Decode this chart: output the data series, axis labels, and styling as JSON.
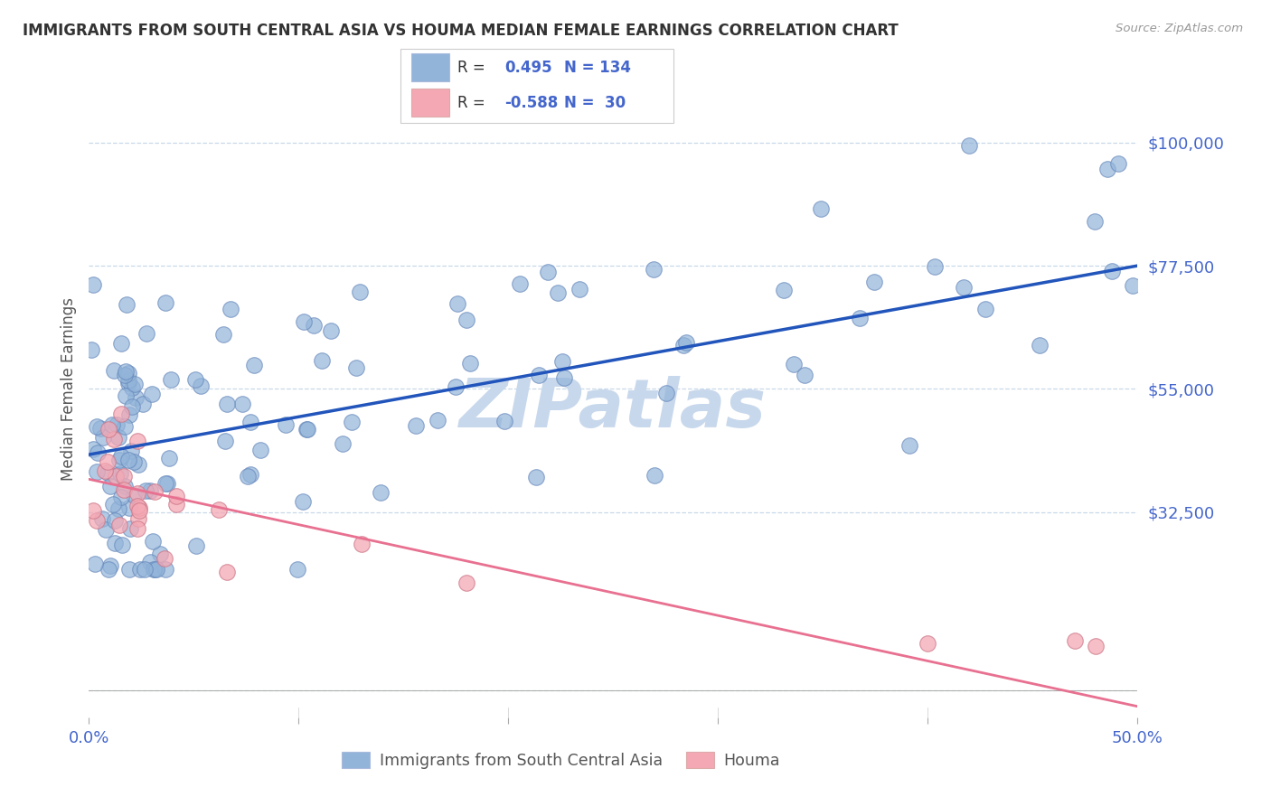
{
  "title": "IMMIGRANTS FROM SOUTH CENTRAL ASIA VS HOUMA MEDIAN FEMALE EARNINGS CORRELATION CHART",
  "source": "Source: ZipAtlas.com",
  "ylabel": "Median Female Earnings",
  "xlim": [
    0.0,
    0.5
  ],
  "ylim": [
    -5000,
    115000
  ],
  "yticks": [
    0,
    32500,
    55000,
    77500,
    100000
  ],
  "ytick_labels": [
    "",
    "$32,500",
    "$55,000",
    "$77,500",
    "$100,000"
  ],
  "xticks": [
    0.0,
    0.1,
    0.2,
    0.3,
    0.4,
    0.5
  ],
  "xtick_labels": [
    "0.0%",
    "",
    "",
    "",
    "",
    "50.0%"
  ],
  "blue_R": 0.495,
  "blue_N": 134,
  "pink_R": -0.588,
  "pink_N": 30,
  "blue_color": "#92B4D9",
  "pink_color": "#F4A8B4",
  "blue_line_color": "#2255BB",
  "pink_line_color": "#E87090",
  "blue_label": "Immigrants from South Central Asia",
  "pink_label": "Houma",
  "title_color": "#333333",
  "axis_label_color": "#4466CC",
  "watermark_color": "#C8D8EC",
  "background_color": "#FFFFFF",
  "blue_trend_x0": 0.0,
  "blue_trend_y0": 43000,
  "blue_trend_x1": 0.5,
  "blue_trend_y1": 77500,
  "pink_trend_x0": 0.0,
  "pink_trend_y0": 38500,
  "pink_trend_x1": 0.5,
  "pink_trend_y1": -3000
}
